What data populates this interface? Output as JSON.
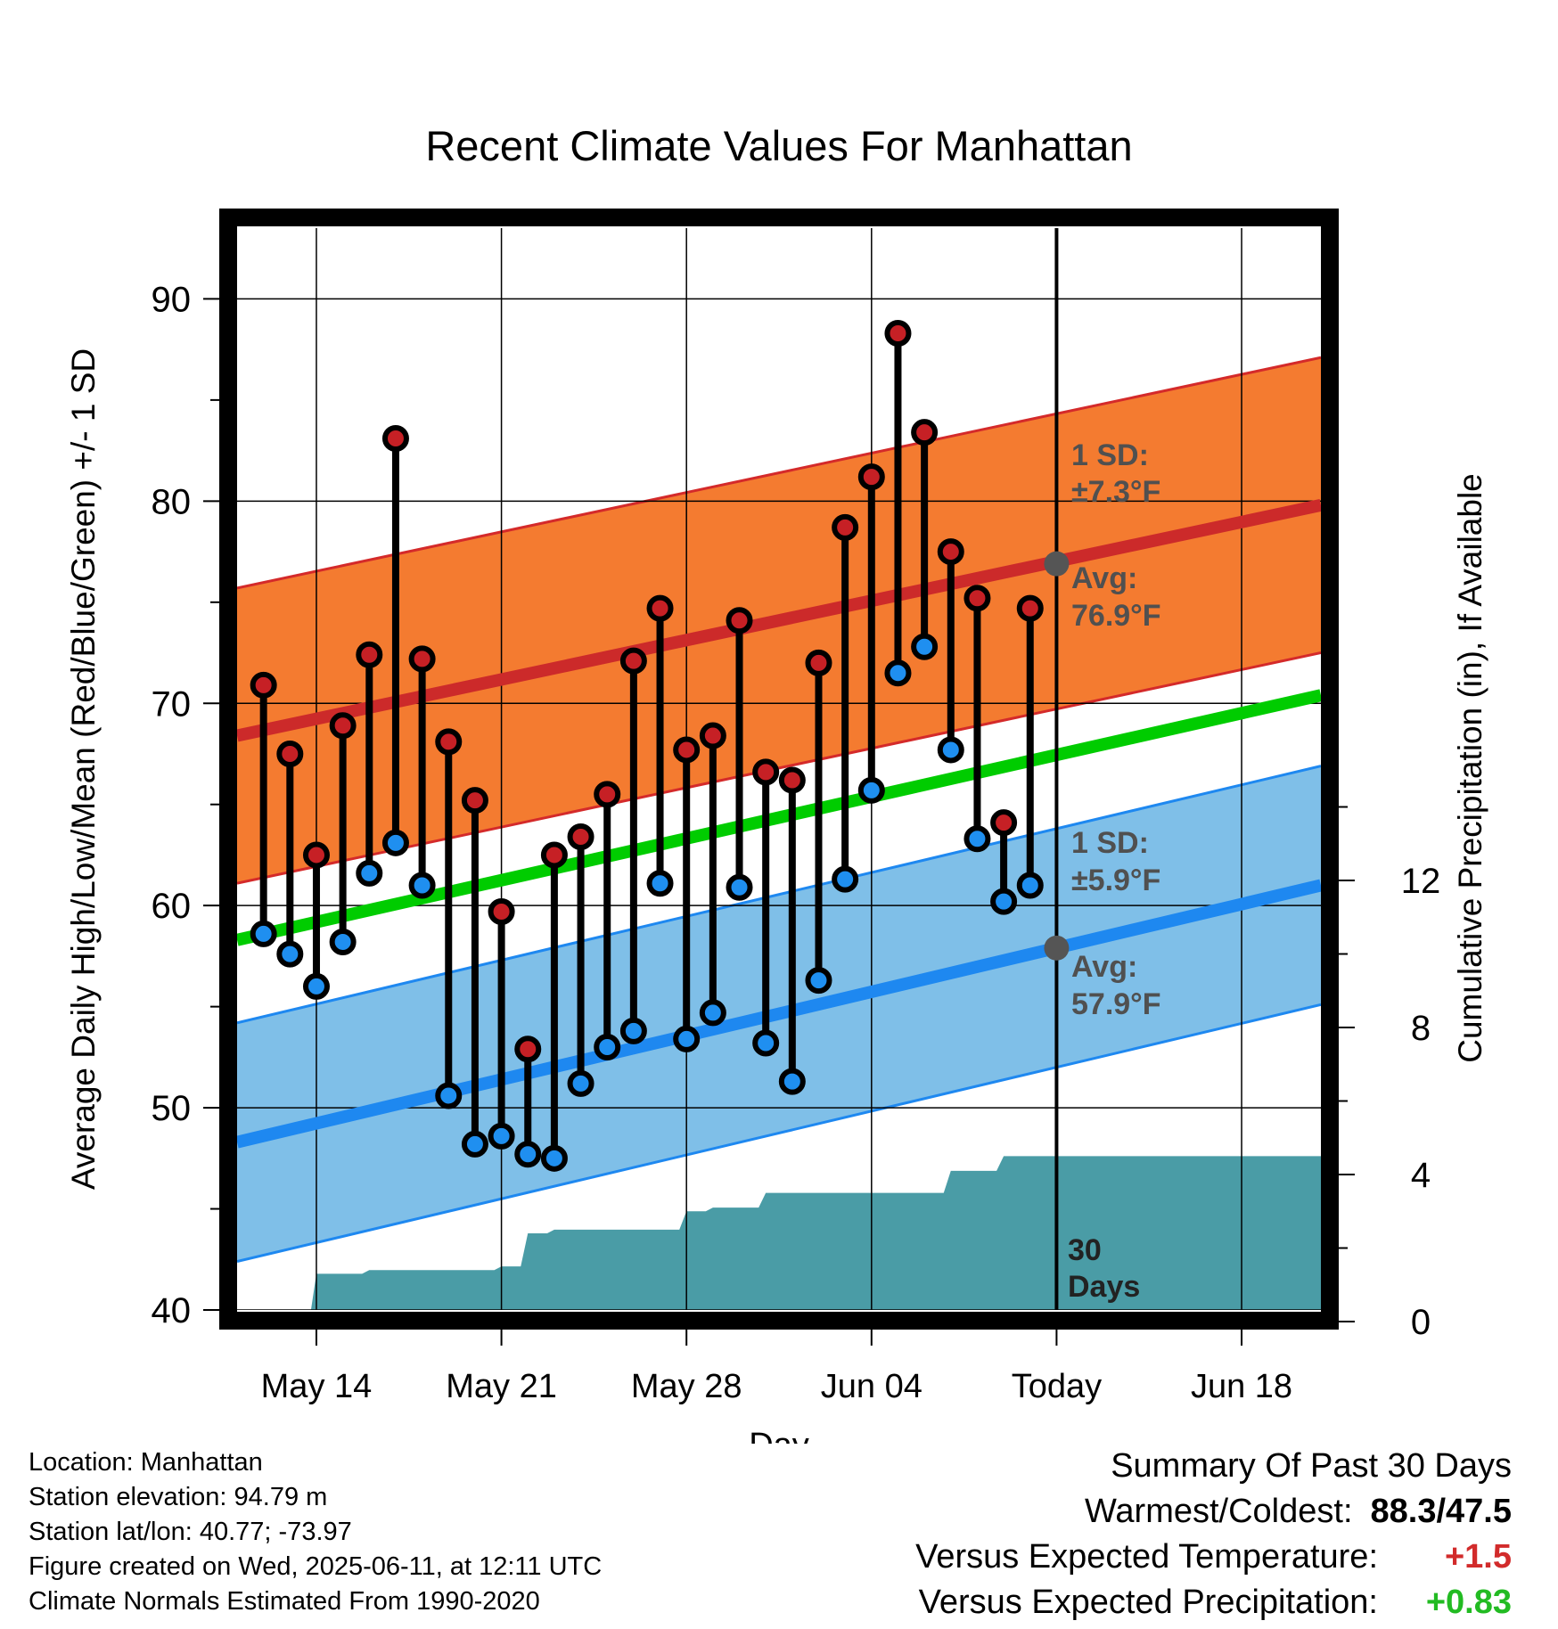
{
  "chart_data": {
    "type": "line",
    "title": "Recent Climate Values For Manhattan",
    "xlabel": "Day",
    "ylabel": "Average Daily High/Low/Mean (Red/Blue/Green) +/- 1 SD",
    "y2label": "Cumulative Precipitation (in), If Available",
    "ylim": [
      40,
      93.5
    ],
    "y2lim": [
      0,
      18
    ],
    "yticks": [
      40,
      50,
      60,
      70,
      80,
      90
    ],
    "y2ticks": [
      0,
      4,
      8,
      12
    ],
    "x_start": "May 11",
    "x_end": "Jun 21",
    "x_ticks": [
      {
        "day": 3,
        "label": "May 14"
      },
      {
        "day": 10,
        "label": "May 21"
      },
      {
        "day": 17,
        "label": "May 28"
      },
      {
        "day": 24,
        "label": "Jun 04"
      },
      {
        "day": 31,
        "label": "Today"
      },
      {
        "day": 38,
        "label": "Jun 18"
      }
    ],
    "today_day": 31,
    "series": [
      {
        "name": "High",
        "color": "#c62025",
        "days": [
          1,
          2,
          3,
          4,
          5,
          6,
          7,
          8,
          9,
          10,
          11,
          12,
          13,
          14,
          15,
          16,
          17,
          18,
          19,
          20,
          21,
          22,
          23,
          24,
          25,
          26,
          27,
          28,
          29,
          30
        ],
        "values": [
          70.9,
          67.5,
          62.5,
          68.9,
          72.4,
          83.1,
          72.2,
          68.1,
          65.2,
          59.7,
          52.9,
          62.5,
          63.4,
          65.5,
          72.1,
          74.7,
          67.7,
          68.4,
          74.1,
          66.6,
          66.2,
          72.0,
          78.7,
          81.2,
          88.3,
          83.4,
          77.5,
          75.2,
          64.1,
          74.7
        ]
      },
      {
        "name": "Low",
        "color": "#1f8ff0",
        "days": [
          1,
          2,
          3,
          4,
          5,
          6,
          7,
          8,
          9,
          10,
          11,
          12,
          13,
          14,
          15,
          16,
          17,
          18,
          19,
          20,
          21,
          22,
          23,
          24,
          25,
          26,
          27,
          28,
          29,
          30
        ],
        "values": [
          58.6,
          57.6,
          56.0,
          58.2,
          61.6,
          63.1,
          61.0,
          50.6,
          48.2,
          48.6,
          47.7,
          47.5,
          51.2,
          53.0,
          53.8,
          61.1,
          53.4,
          54.7,
          60.9,
          53.2,
          51.3,
          56.3,
          61.3,
          65.7,
          71.5,
          72.8,
          67.7,
          63.3,
          60.2,
          61.0
        ]
      },
      {
        "name": "Normal High",
        "color": "#cc2a2a",
        "start": 68.4,
        "end": 79.8
      },
      {
        "name": "Normal Low",
        "color": "#1e88f0",
        "start": 48.3,
        "end": 61.0
      },
      {
        "name": "Normal Mean",
        "color": "#00cc00",
        "start": 58.3,
        "end": 70.4
      },
      {
        "name": "Cumulative Precipitation",
        "step_days": [
          0,
          2,
          3,
          4,
          5,
          6,
          7,
          8,
          9,
          10,
          11,
          12,
          13,
          14,
          15,
          16,
          17,
          18,
          19,
          20,
          21,
          22,
          23,
          24,
          25,
          26,
          27,
          28,
          29,
          30,
          41
        ],
        "values": [
          0,
          0,
          1.3,
          1.3,
          1.4,
          1.4,
          1.4,
          1.4,
          1.4,
          1.5,
          2.4,
          2.5,
          2.5,
          2.5,
          2.5,
          2.5,
          3.0,
          3.1,
          3.1,
          3.5,
          3.5,
          3.5,
          3.5,
          3.5,
          3.5,
          3.5,
          4.1,
          4.1,
          4.5,
          4.5,
          4.5
        ]
      }
    ],
    "sd_high": 7.3,
    "sd_low": 5.9,
    "avg_high_today": 76.9,
    "avg_low_today": 57.9,
    "annotations": {
      "sd_high_label": "1 SD:",
      "sd_high_value": "±7.3°F",
      "avg_high_label": "Avg:",
      "avg_high_value": "76.9°F",
      "sd_low_label": "1 SD:",
      "sd_low_value": "±5.9°F",
      "avg_low_label": "Avg:",
      "avg_low_value": "57.9°F",
      "days_line1": "30",
      "days_line2": "Days"
    },
    "colors": {
      "high_band": "#f47b30",
      "low_band": "#7fbfe8",
      "precip": "#4a9ca6",
      "annotation_text": "#505050"
    }
  },
  "info": {
    "location": "Location: Manhattan",
    "elevation": "Station elevation: 94.79 m",
    "latlon": "Station lat/lon: 40.77; -73.97",
    "created": "Figure created on Wed, 2025-06-11, at 12:11 UTC",
    "normals": "Climate Normals Estimated From 1990-2020"
  },
  "summary": {
    "heading": "Summary Of Past 30 Days",
    "warmest_label": "Warmest/Coldest:",
    "warmest_value": "88.3/47.5",
    "temp_label": "Versus Expected Temperature:",
    "temp_value": "+1.5",
    "temp_color": "#d22b2b",
    "precip_label": "Versus Expected Precipitation:",
    "precip_value": "+0.83",
    "precip_color": "#22bb22"
  }
}
